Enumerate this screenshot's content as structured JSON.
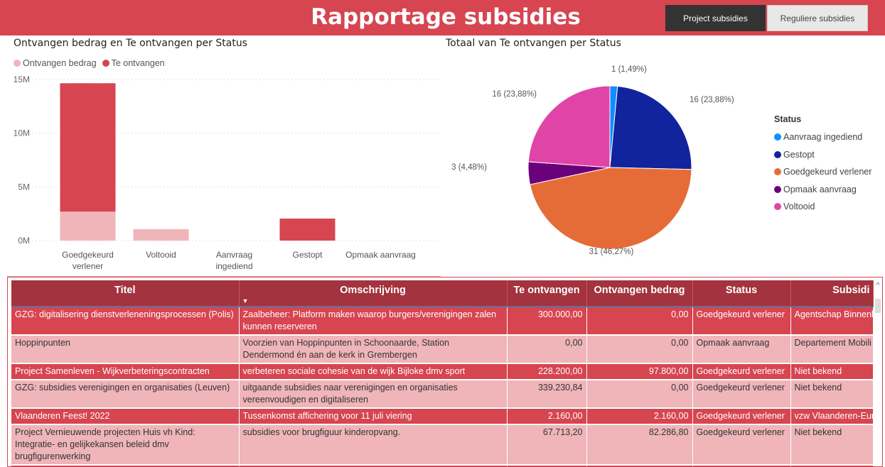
{
  "header": {
    "title": "Rapportage subsidies",
    "buttons": [
      "Project subsidies",
      "Reguliere subsidies"
    ]
  },
  "bar_chart": {
    "title": "Ontvangen bedrag en Te ontvangen per Status"
  },
  "pie_chart": {
    "title": "Totaal van Te ontvangen per Status",
    "legend_title": "Status"
  },
  "chart_data": [
    {
      "type": "bar",
      "stacked": true,
      "title": "Ontvangen bedrag en Te ontvangen per Status",
      "categories": [
        "Goedgekeurd verlener",
        "Voltooid",
        "Aanvraag ingediend",
        "Gestopt",
        "Opmaak aanvraag"
      ],
      "category_lines": [
        [
          "Goedgekeurd",
          "verlener"
        ],
        [
          "Voltooid"
        ],
        [
          "Aanvraag",
          "ingediend"
        ],
        [
          "Gestopt"
        ],
        [
          "Opmaak aanvraag"
        ]
      ],
      "series": [
        {
          "name": "Ontvangen bedrag",
          "color": "#efb5b9",
          "values": [
            2.7,
            1.06,
            0,
            0,
            0
          ]
        },
        {
          "name": "Te ontvangen",
          "color": "#d64550",
          "values": [
            11.95,
            0,
            0,
            2.05,
            0
          ]
        }
      ],
      "yticks": [
        "0M",
        "5M",
        "10M",
        "15M"
      ],
      "ylim": [
        0,
        15
      ],
      "unit": "M",
      "legend": "top-left",
      "grid": true
    },
    {
      "type": "pie",
      "title": "Totaal van Te ontvangen per Status",
      "slices": [
        {
          "label": "Aanvraag ingediend",
          "value": 1,
          "text": "1 (1,49%)",
          "color": "#118dff"
        },
        {
          "label": "Gestopt",
          "value": 16,
          "text": "16 (23,88%)",
          "color": "#12239e"
        },
        {
          "label": "Goedgekeurd verlener",
          "value": 31,
          "text": "31 (46,27%)",
          "color": "#e66c37"
        },
        {
          "label": "Opmaak aanvraag",
          "value": 3,
          "text": "3 (4,48%)",
          "color": "#6b007b"
        },
        {
          "label": "Voltooid",
          "value": 16,
          "text": "16 (23,88%)",
          "color": "#e044a7"
        }
      ],
      "legend": "right"
    }
  ],
  "table": {
    "columns": [
      "Titel",
      "Omschrijving",
      "Te ontvangen",
      "Ontvangen bedrag",
      "Status",
      "Subsidi"
    ],
    "rows": [
      [
        "GZG: digitalisering dienstverleneningsprocessen (Polis)",
        "Zaalbeheer: Platform maken waarop burgers/verenigingen zalen kunnen reserveren",
        "300.000,00",
        "0,00",
        "Goedgekeurd verlener",
        "Agentschap Binnenl"
      ],
      [
        "Hoppinpunten",
        "Voorzien van Hoppinpunten in Schoonaarde, Station Dendermond én aan de kerk in Grembergen",
        "0,00",
        "0,00",
        "Opmaak aanvraag",
        "Departement Mobili"
      ],
      [
        "Project Samenleven - Wijkverbeteringscontracten",
        "verbeteren sociale cohesie van de wijk Bijloke dmv sport",
        "228.200,00",
        "97.800,00",
        "Goedgekeurd verlener",
        "Niet bekend"
      ],
      [
        "GZG: subsidies verenigingen en organisaties (Leuven)",
        "uitgaande subsidies naar verenigingen en organisaties vereenvoudigen en digitaliseren",
        "339.230,84",
        "0,00",
        "Goedgekeurd verlener",
        "Niet bekend"
      ],
      [
        "Vlaanderen Feest! 2022",
        "Tussenkomst affichering voor 11 juli viering",
        "2.160,00",
        "2.160,00",
        "Goedgekeurd verlener",
        "vzw Vlaanderen-Eur"
      ],
      [
        "Project Vernieuwende projecten Huis vh Kind: Integratie- en gelijkekansen beleid dmv brugfigurenwerking",
        "subsidies voor brugfiguur kinderopvang.",
        "67.713,20",
        "82.286,80",
        "Goedgekeurd verlener",
        "Niet bekend"
      ],
      [
        "",
        "",
        "",
        "",
        "",
        ""
      ]
    ]
  }
}
